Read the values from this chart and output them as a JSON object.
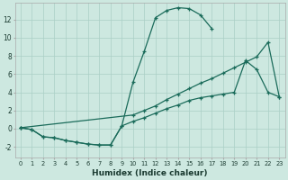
{
  "xlabel": "Humidex (Indice chaleur)",
  "bg_color": "#cde8e0",
  "grid_color": "#aacfc6",
  "line_color": "#1a6b5a",
  "xlim": [
    -0.5,
    23.5
  ],
  "ylim": [
    -3.2,
    13.8
  ],
  "xticks": [
    0,
    1,
    2,
    3,
    4,
    5,
    6,
    7,
    8,
    9,
    10,
    11,
    12,
    13,
    14,
    15,
    16,
    17,
    18,
    19,
    20,
    21,
    22,
    23
  ],
  "yticks": [
    -2,
    0,
    2,
    4,
    6,
    8,
    10,
    12
  ],
  "curve_top_x": [
    0,
    1,
    2,
    3,
    4,
    5,
    6,
    7,
    8,
    9,
    10,
    11,
    12,
    13,
    14,
    15,
    16,
    17
  ],
  "curve_top_y": [
    0.1,
    -0.1,
    -0.9,
    -1.0,
    -1.3,
    -1.5,
    -1.7,
    -1.8,
    -1.8,
    0.3,
    5.1,
    8.5,
    12.2,
    13.0,
    13.3,
    13.2,
    12.5,
    11.0
  ],
  "line_diag_x": [
    0,
    10,
    11,
    12,
    13,
    14,
    15,
    16,
    17,
    18,
    19,
    20,
    21,
    22,
    23
  ],
  "line_diag_y": [
    0.1,
    1.5,
    2.0,
    2.5,
    3.2,
    3.8,
    4.4,
    5.0,
    5.5,
    6.1,
    6.7,
    7.3,
    7.9,
    9.5,
    3.5
  ],
  "curve_mid_x": [
    0,
    1,
    2,
    3,
    4,
    5,
    6,
    7,
    8,
    9,
    10,
    11,
    12,
    13,
    14,
    15,
    16,
    17,
    18,
    19,
    20,
    21,
    22,
    23
  ],
  "curve_mid_y": [
    0.1,
    -0.1,
    -0.9,
    -1.0,
    -1.3,
    -1.5,
    -1.7,
    -1.8,
    -1.8,
    0.3,
    0.8,
    1.2,
    1.7,
    2.2,
    2.6,
    3.1,
    3.4,
    3.6,
    3.8,
    4.0,
    7.5,
    6.5,
    4.0,
    3.5
  ]
}
